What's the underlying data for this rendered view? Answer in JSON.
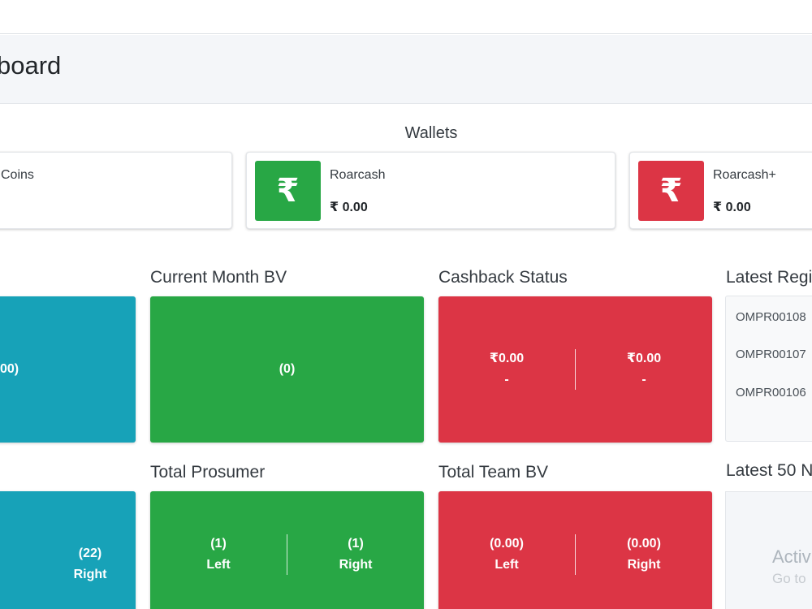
{
  "header": {
    "title": "board"
  },
  "wallets": {
    "title": "Wallets",
    "cards": [
      {
        "label": "Coins",
        "value": ""
      },
      {
        "label": "Roarcash",
        "value": "₹ 0.00",
        "icon": "rupee-icon",
        "color": "#28a745"
      },
      {
        "label": "Roarcash+",
        "value": "₹ 0.00",
        "icon": "rupee-icon",
        "color": "#dc3545"
      }
    ]
  },
  "row1": {
    "tile1": {
      "value": "00)"
    },
    "current_month_bv": {
      "title": "Current Month BV",
      "value": "(0)"
    },
    "cashback_status": {
      "title": "Cashback Status",
      "left": {
        "amount": "₹0.00",
        "sub": "-"
      },
      "right": {
        "amount": "₹0.00",
        "sub": "-"
      }
    },
    "latest_registrations": {
      "title": "Latest Regi",
      "items": [
        "OMPR00108",
        "OMPR00107",
        "OMPR00106"
      ]
    }
  },
  "row2": {
    "tile1": {
      "value": "(22)",
      "label": "Right"
    },
    "total_prosumer": {
      "title": "Total Prosumer",
      "left": {
        "value": "(1)",
        "label": "Left"
      },
      "right": {
        "value": "(1)",
        "label": "Right"
      }
    },
    "total_team_bv": {
      "title": "Total Team BV",
      "left": {
        "value": "(0.00)",
        "label": "Left"
      },
      "right": {
        "value": "(0.00)",
        "label": "Right"
      }
    },
    "latest_50": {
      "title": "Latest 50 N",
      "text": "Activ",
      "sub": "Go to"
    }
  },
  "colors": {
    "teal": "#17a2b8",
    "green": "#28a745",
    "red": "#dc3545"
  }
}
